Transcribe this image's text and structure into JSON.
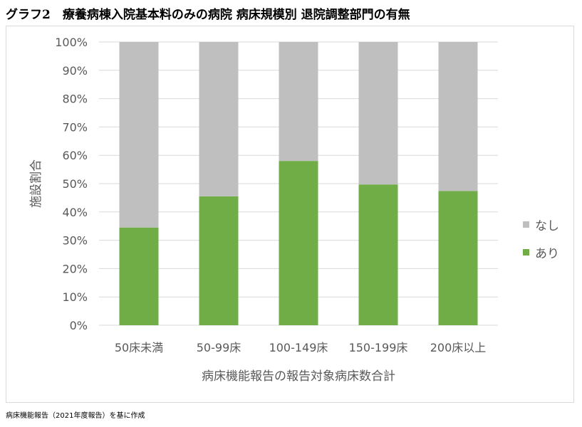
{
  "title": "グラフ2　療養病棟入院基本料のみの病院 病床規模別 退院調整部門の有無",
  "source_note": "病床機能報告（2021年度報告）を基に作成",
  "colors": {
    "nashi": "#bfbfbf",
    "ari": "#70ad47",
    "axis_text": "#595959",
    "grid": "#d9d9d9"
  },
  "chart_data": {
    "type": "bar",
    "stacked": true,
    "percent": true,
    "categories": [
      "50床未満",
      "50-99床",
      "100-149床",
      "150-199床",
      "200床以上"
    ],
    "series": [
      {
        "name": "あり",
        "values": [
          34.5,
          45.5,
          58.0,
          49.7,
          47.4
        ],
        "color": "#70ad47"
      },
      {
        "name": "なし",
        "values": [
          65.5,
          54.5,
          42.0,
          50.3,
          52.6
        ],
        "color": "#bfbfbf"
      }
    ],
    "ylabel": "施設割合",
    "xlabel": "病床機能報告の報告対象病床数合計",
    "ylim": [
      0,
      100
    ],
    "yticks": [
      "0%",
      "10%",
      "20%",
      "30%",
      "40%",
      "50%",
      "60%",
      "70%",
      "80%",
      "90%",
      "100%"
    ],
    "grid": true,
    "legend_position": "right",
    "legend": [
      "なし",
      "あり"
    ]
  }
}
